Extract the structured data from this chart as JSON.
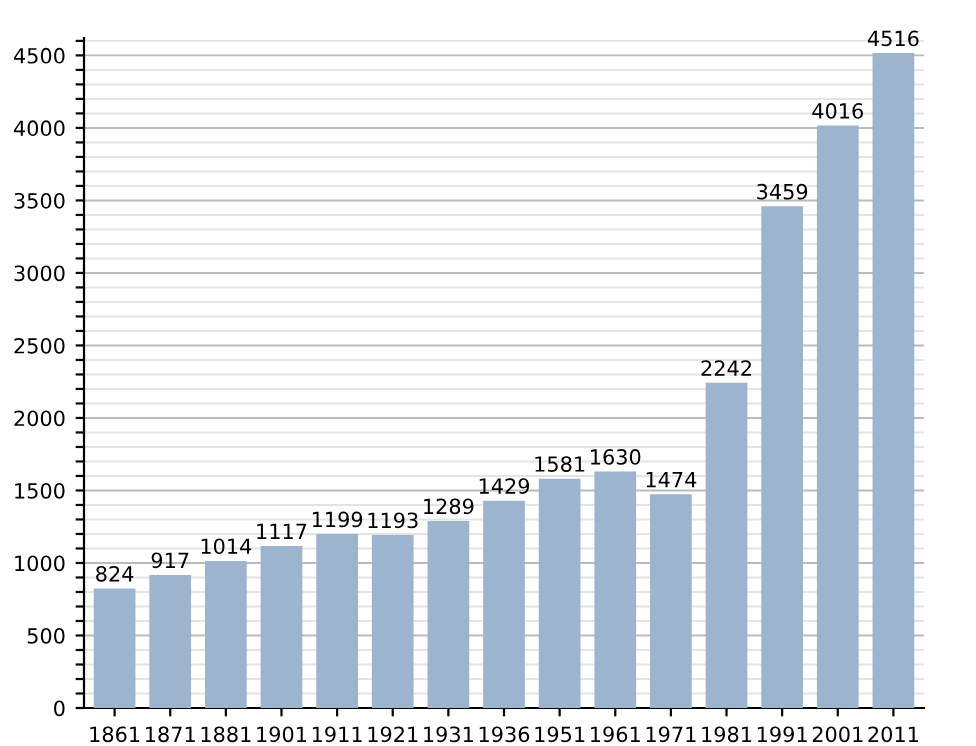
{
  "chart_data": {
    "type": "bar",
    "categories": [
      "1861",
      "1871",
      "1881",
      "1901",
      "1911",
      "1921",
      "1931",
      "1936",
      "1951",
      "1961",
      "1971",
      "1981",
      "1991",
      "2001",
      "2011"
    ],
    "values": [
      824,
      917,
      1014,
      1117,
      1199,
      1193,
      1289,
      1429,
      1581,
      1630,
      1474,
      2242,
      3459,
      4016,
      4516
    ],
    "color": "#9db4cf",
    "data_labels": true,
    "grid": "y",
    "ylim": [
      0,
      4620
    ],
    "yticks": [
      0,
      {
        "value": 100,
        "label": null
      },
      {
        "value": 200,
        "label": null
      },
      {
        "value": 300,
        "label": null
      },
      {
        "value": 400,
        "label": null
      },
      500,
      {
        "value": 600,
        "label": null
      },
      {
        "value": 700,
        "label": null
      },
      {
        "value": 800,
        "label": null
      },
      {
        "value": 900,
        "label": null
      },
      1000,
      {
        "value": 1100,
        "label": null
      },
      {
        "value": 1200,
        "label": null
      },
      {
        "value": 1300,
        "label": null
      },
      {
        "value": 1400,
        "label": null
      },
      1500,
      {
        "value": 1600,
        "label": null
      },
      {
        "value": 1700,
        "label": null
      },
      {
        "value": 1800,
        "label": null
      },
      {
        "value": 1900,
        "label": null
      },
      2000,
      {
        "value": 2100,
        "label": null
      },
      {
        "value": 2200,
        "label": null
      },
      {
        "value": 2300,
        "label": null
      },
      {
        "value": 2400,
        "label": null
      },
      2500,
      {
        "value": 2600,
        "label": null
      },
      {
        "value": 2700,
        "label": null
      },
      {
        "value": 2800,
        "label": null
      },
      {
        "value": 2900,
        "label": null
      },
      3000,
      {
        "value": 3100,
        "label": null
      },
      {
        "value": 3200,
        "label": null
      },
      {
        "value": 3300,
        "label": null
      },
      {
        "value": 3400,
        "label": null
      },
      3500,
      {
        "value": 3600,
        "label": null
      },
      {
        "value": 3700,
        "label": null
      },
      {
        "value": 3800,
        "label": null
      },
      {
        "value": 3900,
        "label": null
      },
      4000,
      {
        "value": 4100,
        "label": null
      },
      {
        "value": 4200,
        "label": null
      },
      {
        "value": 4300,
        "label": null
      },
      {
        "value": 4400,
        "label": null
      },
      4500,
      {
        "value": 4600,
        "label": null
      }
    ]
  }
}
